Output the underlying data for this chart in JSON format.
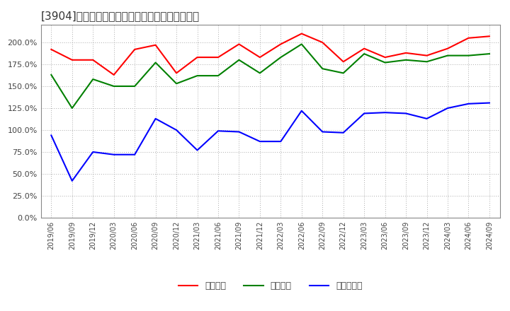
{
  "title": "[3904]　流動比率、当座比率、現頃金比率の推移",
  "dates": [
    "2019/06",
    "2019/09",
    "2019/12",
    "2020/03",
    "2020/06",
    "2020/09",
    "2020/12",
    "2021/03",
    "2021/06",
    "2021/09",
    "2021/12",
    "2022/03",
    "2022/06",
    "2022/09",
    "2022/12",
    "2023/03",
    "2023/06",
    "2023/09",
    "2023/12",
    "2024/03",
    "2024/06",
    "2024/09"
  ],
  "ryudo": [
    192,
    180,
    180,
    163,
    192,
    197,
    165,
    183,
    183,
    198,
    183,
    198,
    210,
    200,
    178,
    193,
    183,
    188,
    185,
    193,
    205,
    207
  ],
  "toza": [
    163,
    125,
    158,
    150,
    150,
    177,
    153,
    162,
    162,
    180,
    165,
    183,
    198,
    170,
    165,
    187,
    177,
    180,
    178,
    185,
    185,
    187
  ],
  "genyo": [
    94,
    42,
    75,
    72,
    72,
    113,
    100,
    77,
    99,
    98,
    87,
    87,
    122,
    98,
    97,
    119,
    120,
    119,
    113,
    125,
    130,
    131
  ],
  "ryudo_color": "#ff0000",
  "toza_color": "#008000",
  "genyo_color": "#0000ff",
  "legend_label_ryudo": "流動比率",
  "legend_label_toza": "当座比率",
  "legend_label_genyo": "現頃金比率",
  "ylim": [
    0,
    220
  ],
  "yticks": [
    0,
    25,
    50,
    75,
    100,
    125,
    150,
    175,
    200
  ],
  "background_color": "#ffffff",
  "plot_bg_color": "#ffffff",
  "grid_color": "#aaaaaa",
  "title_fontsize": 11,
  "linewidth": 1.5
}
